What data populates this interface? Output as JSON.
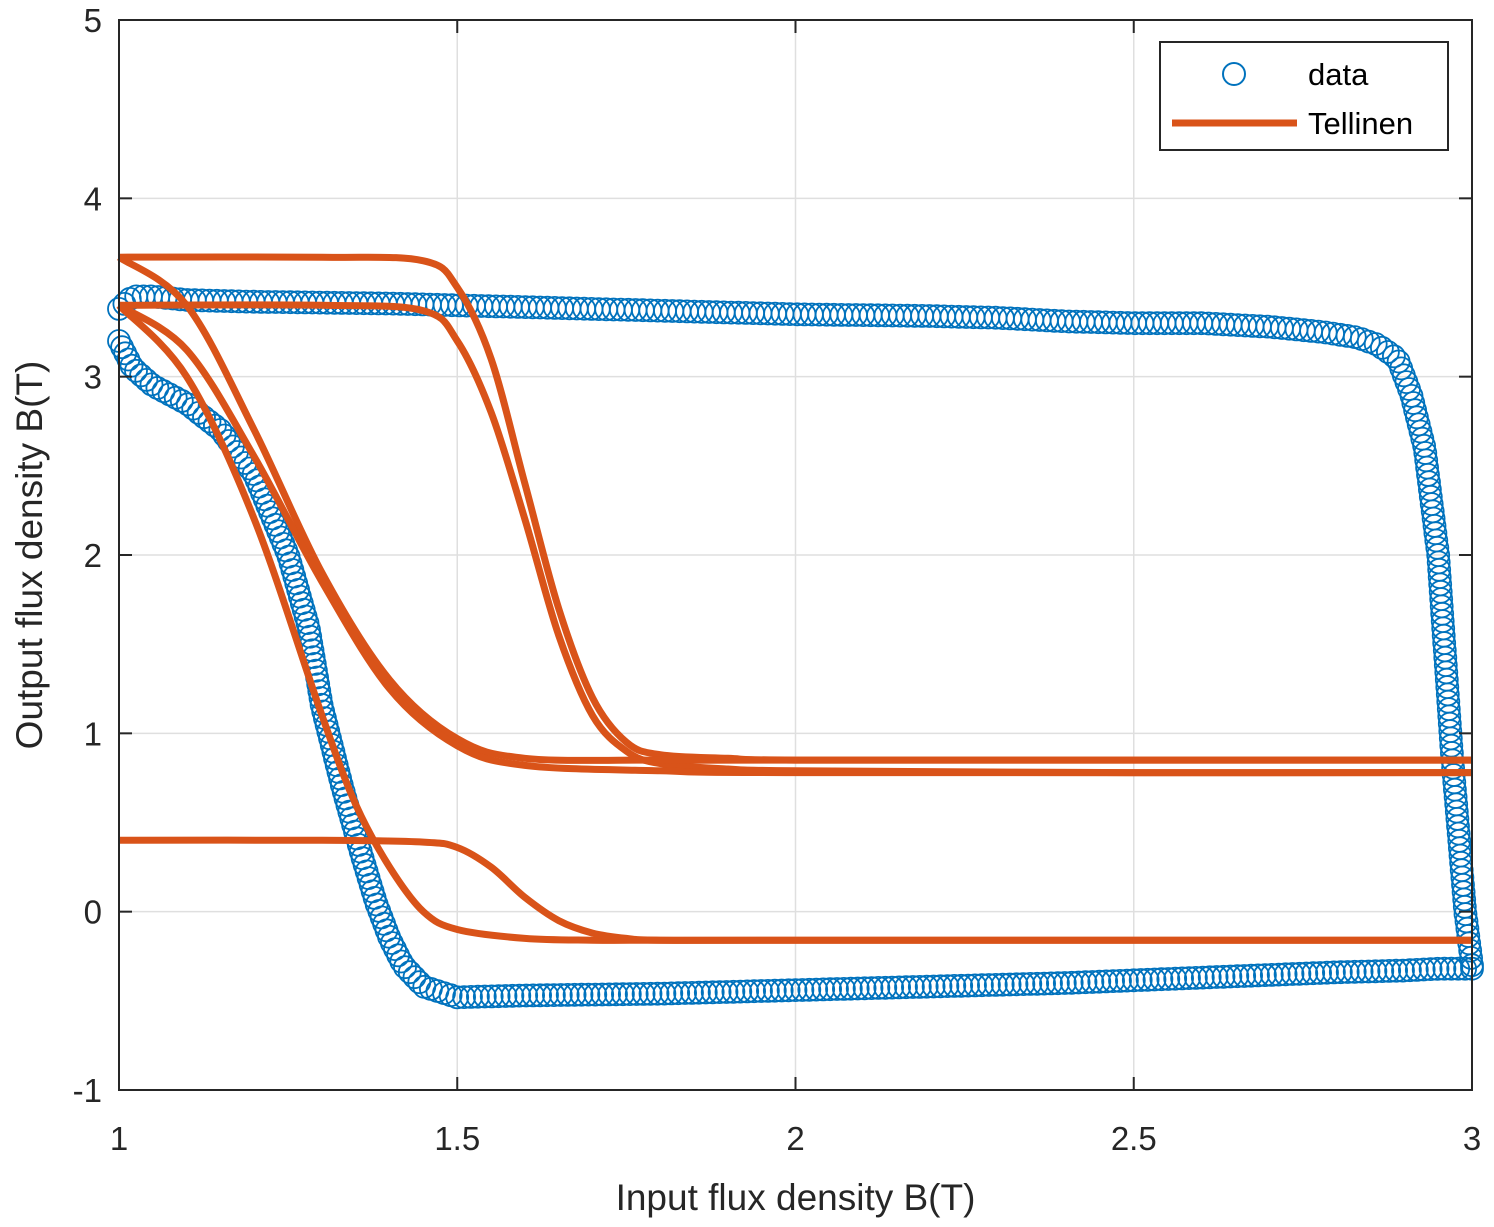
{
  "chart_data": {
    "type": "scatter",
    "xlabel": "Input flux density B(T)",
    "ylabel": "Output flux density B(T)",
    "xlim": [
      1,
      3
    ],
    "ylim": [
      -1,
      5
    ],
    "xticks": [
      1,
      1.5,
      2,
      2.5,
      3
    ],
    "xtick_labels": [
      "1",
      "1.5",
      "2",
      "2.5",
      "3"
    ],
    "yticks": [
      -1,
      0,
      1,
      2,
      3,
      4,
      5
    ],
    "ytick_labels": [
      "-1",
      "0",
      "1",
      "2",
      "3",
      "4",
      "5"
    ],
    "grid": true,
    "legend_position": "top-right",
    "series": [
      {
        "name": "data",
        "kind": "markers",
        "marker": "circle",
        "color": "#0072BD",
        "branches": [
          {
            "x": [
              3.0,
              2.99,
              2.97,
              2.95,
              2.93,
              2.91,
              2.89,
              2.86,
              2.83,
              2.78,
              2.7,
              2.6,
              2.5,
              2.4,
              2.3,
              2.2,
              2.0,
              1.8,
              1.6,
              1.4,
              1.2,
              1.1,
              1.05,
              1.02,
              1.0
            ],
            "y": [
              -0.3,
              0.0,
              0.9,
              2.0,
              2.6,
              2.9,
              3.1,
              3.18,
              3.22,
              3.25,
              3.28,
              3.3,
              3.3,
              3.31,
              3.33,
              3.34,
              3.35,
              3.37,
              3.39,
              3.41,
              3.42,
              3.43,
              3.45,
              3.45,
              3.38
            ]
          },
          {
            "x": [
              1.0,
              1.02,
              1.05,
              1.1,
              1.15,
              1.2,
              1.25,
              1.28,
              1.3,
              1.33,
              1.36,
              1.38,
              1.4,
              1.42,
              1.45,
              1.5,
              1.6,
              1.8,
              2.0,
              2.2,
              2.4,
              2.6,
              2.8,
              2.9,
              2.95,
              3.0
            ],
            "y": [
              3.2,
              3.05,
              2.95,
              2.85,
              2.7,
              2.45,
              2.0,
              1.6,
              1.15,
              0.7,
              0.3,
              0.05,
              -0.15,
              -0.3,
              -0.42,
              -0.48,
              -0.47,
              -0.46,
              -0.44,
              -0.42,
              -0.4,
              -0.37,
              -0.34,
              -0.33,
              -0.32,
              -0.32
            ]
          }
        ]
      },
      {
        "name": "Tellinen",
        "kind": "line",
        "color": "#D95319",
        "branches": [
          {
            "x": [
              1.0,
              1.3,
              1.45,
              1.5,
              1.55,
              1.6,
              1.65,
              1.7,
              1.75,
              1.8,
              1.9,
              2.0,
              2.5,
              3.0
            ],
            "y": [
              3.67,
              3.67,
              3.65,
              3.5,
              3.1,
              2.4,
              1.7,
              1.2,
              0.95,
              0.88,
              0.86,
              0.85,
              0.85,
              0.85
            ]
          },
          {
            "x": [
              1.0,
              1.3,
              1.45,
              1.5,
              1.55,
              1.6,
              1.65,
              1.7,
              1.75,
              1.8,
              1.9,
              2.0,
              2.5,
              3.0
            ],
            "y": [
              3.4,
              3.4,
              3.37,
              3.2,
              2.8,
              2.2,
              1.55,
              1.1,
              0.9,
              0.83,
              0.8,
              0.79,
              0.78,
              0.78
            ]
          },
          {
            "x": [
              1.0,
              1.1,
              1.2,
              1.3,
              1.4,
              1.5,
              1.6,
              1.8,
              2.0,
              3.0
            ],
            "y": [
              3.67,
              3.4,
              2.7,
              1.9,
              1.3,
              0.97,
              0.86,
              0.85,
              0.85,
              0.85
            ]
          },
          {
            "x": [
              1.0,
              1.1,
              1.2,
              1.3,
              1.4,
              1.5,
              1.6,
              1.8,
              2.0,
              3.0
            ],
            "y": [
              3.4,
              3.15,
              2.55,
              1.85,
              1.25,
              0.93,
              0.82,
              0.79,
              0.78,
              0.78
            ]
          },
          {
            "x": [
              1.0,
              1.1,
              1.2,
              1.3,
              1.35,
              1.4,
              1.45,
              1.5,
              1.6,
              1.7,
              1.8,
              2.0,
              3.0
            ],
            "y": [
              3.4,
              3.0,
              2.2,
              1.1,
              0.6,
              0.25,
              0.0,
              -0.1,
              -0.15,
              -0.16,
              -0.16,
              -0.16,
              -0.16
            ]
          },
          {
            "x": [
              1.0,
              1.3,
              1.45,
              1.5,
              1.55,
              1.6,
              1.65,
              1.7,
              1.75,
              1.8,
              2.0,
              3.0
            ],
            "y": [
              0.4,
              0.4,
              0.39,
              0.36,
              0.25,
              0.08,
              -0.05,
              -0.12,
              -0.15,
              -0.16,
              -0.16,
              -0.16
            ]
          }
        ]
      }
    ]
  }
}
